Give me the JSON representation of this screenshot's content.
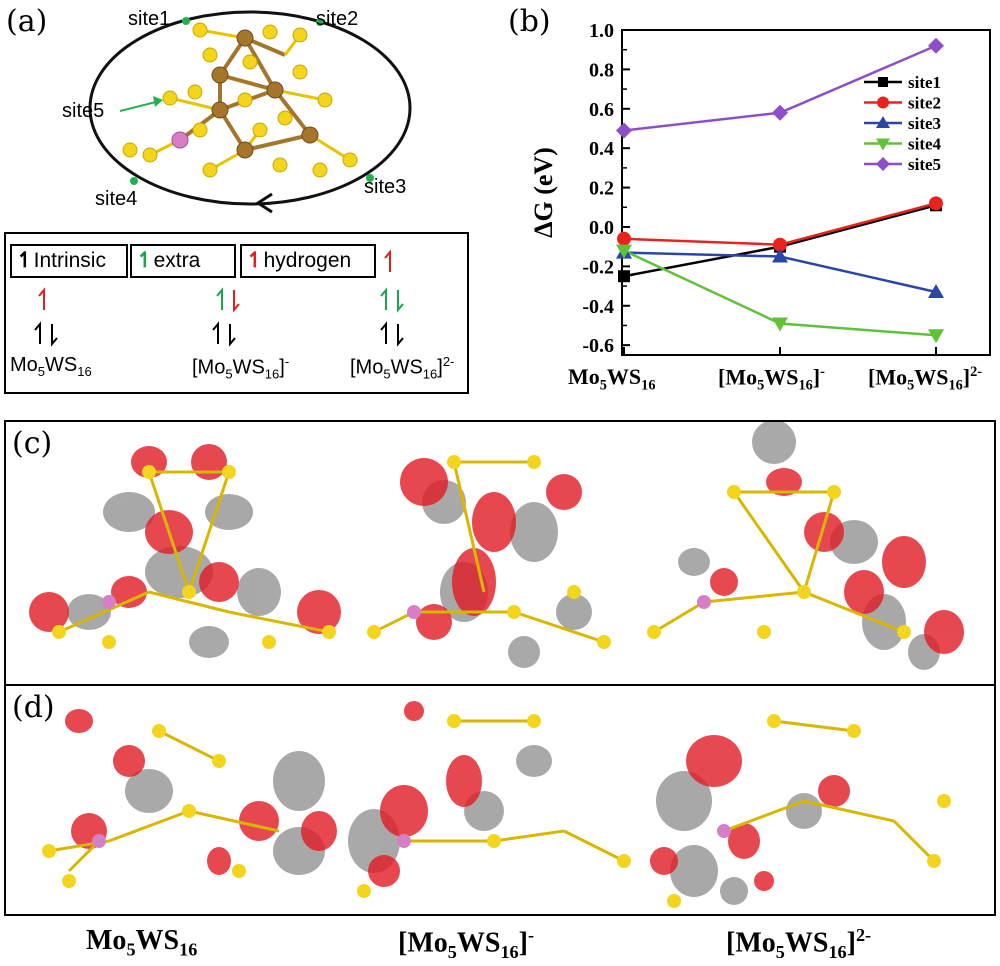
{
  "panels": {
    "a": "(a)",
    "b": "(b)",
    "c": "(c)",
    "d": "(d)"
  },
  "panel_a": {
    "sites": [
      "site1",
      "site2",
      "site3",
      "site4",
      "site5"
    ],
    "legend": [
      {
        "label": "Intrinsic",
        "color": "#000000"
      },
      {
        "label": "extra",
        "color": "#1aa64a"
      },
      {
        "label": "hydrogen",
        "color": "#e02020"
      }
    ]
  },
  "formulas": {
    "neutral": {
      "base": "Mo",
      "n1": "5",
      "mid": "WS",
      "n2": "16",
      "charge": ""
    },
    "anion": {
      "base": "[Mo",
      "n1": "5",
      "mid": "WS",
      "n2": "16",
      "close": "]",
      "charge": "-"
    },
    "dianion": {
      "base": "[Mo",
      "n1": "5",
      "mid": "WS",
      "n2": "16",
      "close": "]",
      "charge": "2-"
    }
  },
  "chart_data": {
    "type": "line",
    "categories": [
      "Mo5WS16",
      "[Mo5WS16]-",
      "[Mo5WS16]2-"
    ],
    "ylabel": "ΔG (eV)",
    "ylim": [
      -0.65,
      1.0
    ],
    "yticks": [
      "1.0",
      "0.8",
      "0.6",
      "0.4",
      "0.2",
      "0.0",
      "-0.2",
      "-0.4",
      "-0.6"
    ],
    "legend_position": "right",
    "series": [
      {
        "name": "site1",
        "color": "#000000",
        "marker": "square",
        "values": [
          -0.25,
          -0.1,
          0.11
        ]
      },
      {
        "name": "site2",
        "color": "#e8231e",
        "marker": "circle",
        "values": [
          -0.06,
          -0.09,
          0.12
        ]
      },
      {
        "name": "site3",
        "color": "#2a47a8",
        "marker": "triangle-up",
        "values": [
          -0.13,
          -0.15,
          -0.33
        ]
      },
      {
        "name": "site4",
        "color": "#5fc238",
        "marker": "triangle-down",
        "values": [
          -0.12,
          -0.49,
          -0.55
        ]
      },
      {
        "name": "site5",
        "color": "#8c4fc7",
        "marker": "diamond",
        "values": [
          0.49,
          0.58,
          0.92
        ]
      }
    ]
  },
  "colors": {
    "sulfur": "#f2d51c",
    "molybdenum": "#a4752b",
    "tungsten": "#d77fc6",
    "lobe_red": "#e21b25",
    "lobe_gray": "#8c8c8c"
  }
}
